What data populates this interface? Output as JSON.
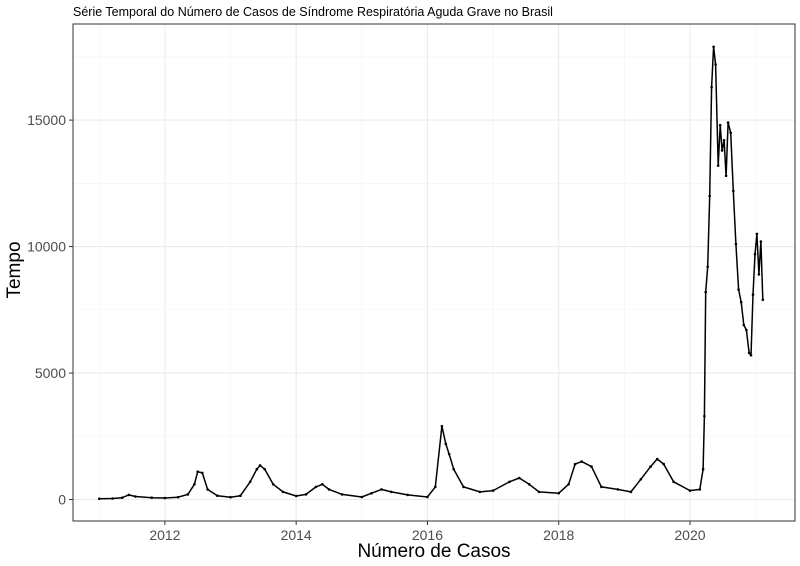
{
  "chart_data": {
    "type": "line",
    "title": "Série Temporal do Número de Casos de Síndrome Respiratória Aguda Grave no Brasil",
    "xlabel": "Número de Casos",
    "ylabel": "Tempo",
    "xlim": [
      2010.6,
      2021.6
    ],
    "ylim": [
      -850,
      18800
    ],
    "x_ticks": [
      2012,
      2014,
      2016,
      2018,
      2020
    ],
    "y_ticks": [
      0,
      5000,
      10000,
      15000
    ],
    "grid": true,
    "series": [
      {
        "points": [
          [
            2011.0,
            30
          ],
          [
            2011.2,
            40
          ],
          [
            2011.35,
            70
          ],
          [
            2011.45,
            180
          ],
          [
            2011.55,
            120
          ],
          [
            2011.8,
            70
          ],
          [
            2012.0,
            60
          ],
          [
            2012.2,
            90
          ],
          [
            2012.35,
            200
          ],
          [
            2012.45,
            600
          ],
          [
            2012.5,
            1100
          ],
          [
            2012.57,
            1050
          ],
          [
            2012.65,
            400
          ],
          [
            2012.8,
            150
          ],
          [
            2013.0,
            90
          ],
          [
            2013.15,
            150
          ],
          [
            2013.3,
            700
          ],
          [
            2013.4,
            1200
          ],
          [
            2013.45,
            1350
          ],
          [
            2013.52,
            1200
          ],
          [
            2013.65,
            600
          ],
          [
            2013.8,
            300
          ],
          [
            2014.0,
            140
          ],
          [
            2014.15,
            200
          ],
          [
            2014.3,
            500
          ],
          [
            2014.4,
            600
          ],
          [
            2014.5,
            400
          ],
          [
            2014.7,
            200
          ],
          [
            2015.0,
            100
          ],
          [
            2015.15,
            250
          ],
          [
            2015.3,
            400
          ],
          [
            2015.45,
            300
          ],
          [
            2015.7,
            180
          ],
          [
            2016.0,
            100
          ],
          [
            2016.12,
            500
          ],
          [
            2016.22,
            2900
          ],
          [
            2016.28,
            2200
          ],
          [
            2016.33,
            1800
          ],
          [
            2016.4,
            1200
          ],
          [
            2016.55,
            500
          ],
          [
            2016.8,
            300
          ],
          [
            2017.0,
            350
          ],
          [
            2017.25,
            700
          ],
          [
            2017.4,
            850
          ],
          [
            2017.55,
            600
          ],
          [
            2017.7,
            300
          ],
          [
            2018.0,
            250
          ],
          [
            2018.15,
            600
          ],
          [
            2018.25,
            1400
          ],
          [
            2018.35,
            1500
          ],
          [
            2018.5,
            1300
          ],
          [
            2018.65,
            500
          ],
          [
            2018.9,
            400
          ],
          [
            2019.1,
            300
          ],
          [
            2019.25,
            800
          ],
          [
            2019.4,
            1300
          ],
          [
            2019.5,
            1600
          ],
          [
            2019.6,
            1400
          ],
          [
            2019.75,
            700
          ],
          [
            2020.0,
            350
          ],
          [
            2020.15,
            400
          ],
          [
            2020.2,
            1200
          ],
          [
            2020.22,
            3300
          ],
          [
            2020.24,
            8200
          ],
          [
            2020.27,
            9200
          ],
          [
            2020.3,
            12000
          ],
          [
            2020.33,
            16300
          ],
          [
            2020.36,
            17900
          ],
          [
            2020.39,
            17200
          ],
          [
            2020.43,
            13200
          ],
          [
            2020.46,
            14800
          ],
          [
            2020.49,
            13800
          ],
          [
            2020.52,
            14200
          ],
          [
            2020.55,
            12800
          ],
          [
            2020.58,
            14900
          ],
          [
            2020.62,
            14500
          ],
          [
            2020.66,
            12200
          ],
          [
            2020.7,
            10100
          ],
          [
            2020.74,
            8300
          ],
          [
            2020.78,
            7800
          ],
          [
            2020.82,
            6900
          ],
          [
            2020.86,
            6700
          ],
          [
            2020.9,
            5800
          ],
          [
            2020.93,
            5700
          ],
          [
            2020.96,
            8100
          ],
          [
            2020.99,
            9700
          ],
          [
            2021.02,
            10500
          ],
          [
            2021.05,
            8900
          ],
          [
            2021.08,
            10200
          ],
          [
            2021.11,
            7900
          ]
        ]
      }
    ]
  }
}
